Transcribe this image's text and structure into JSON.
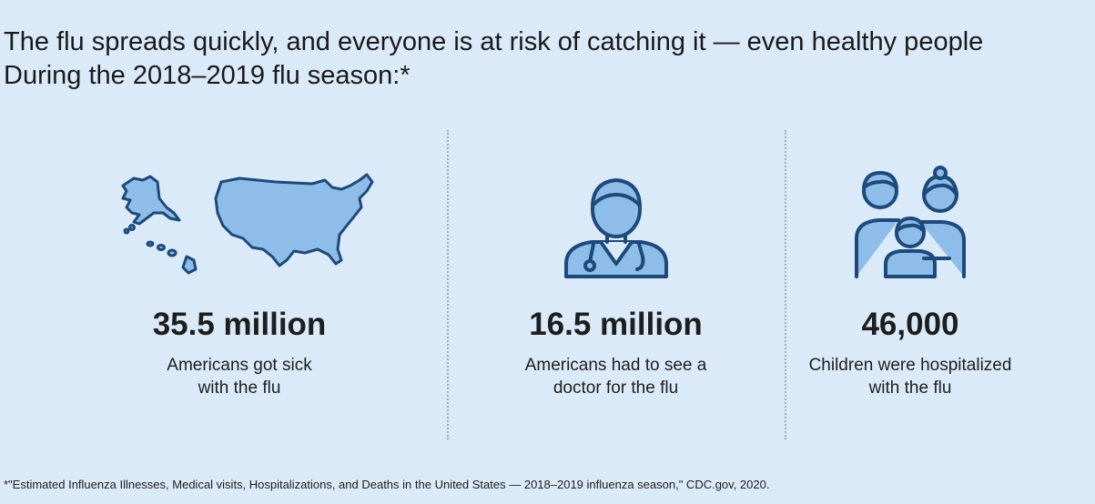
{
  "headline": {
    "line1": "The flu spreads quickly, and everyone is at risk of catching it — even healthy people",
    "line2": "During the 2018–2019 flu season:*"
  },
  "stats": [
    {
      "icon": "us-map-icon",
      "value": "35.5 million",
      "desc_line1": "Americans got sick",
      "desc_line2": "with the flu"
    },
    {
      "icon": "doctor-icon",
      "value": "16.5 million",
      "desc_line1": "Americans had to see a",
      "desc_line2": "doctor for the flu"
    },
    {
      "icon": "family-icon",
      "value": "46,000",
      "desc_line1": "Children were hospitalized",
      "desc_line2": "with the flu"
    }
  ],
  "footnote": "*\"Estimated Influenza Illnesses, Medical visits, Hospitalizations, and Deaths in the United States — 2018–2019 influenza season,\" CDC.gov, 2020.",
  "colors": {
    "background": "#dbeaf9",
    "icon_stroke": "#1d4a7a",
    "icon_fill": "#8dbde8",
    "divider": "#8fb0d1"
  }
}
